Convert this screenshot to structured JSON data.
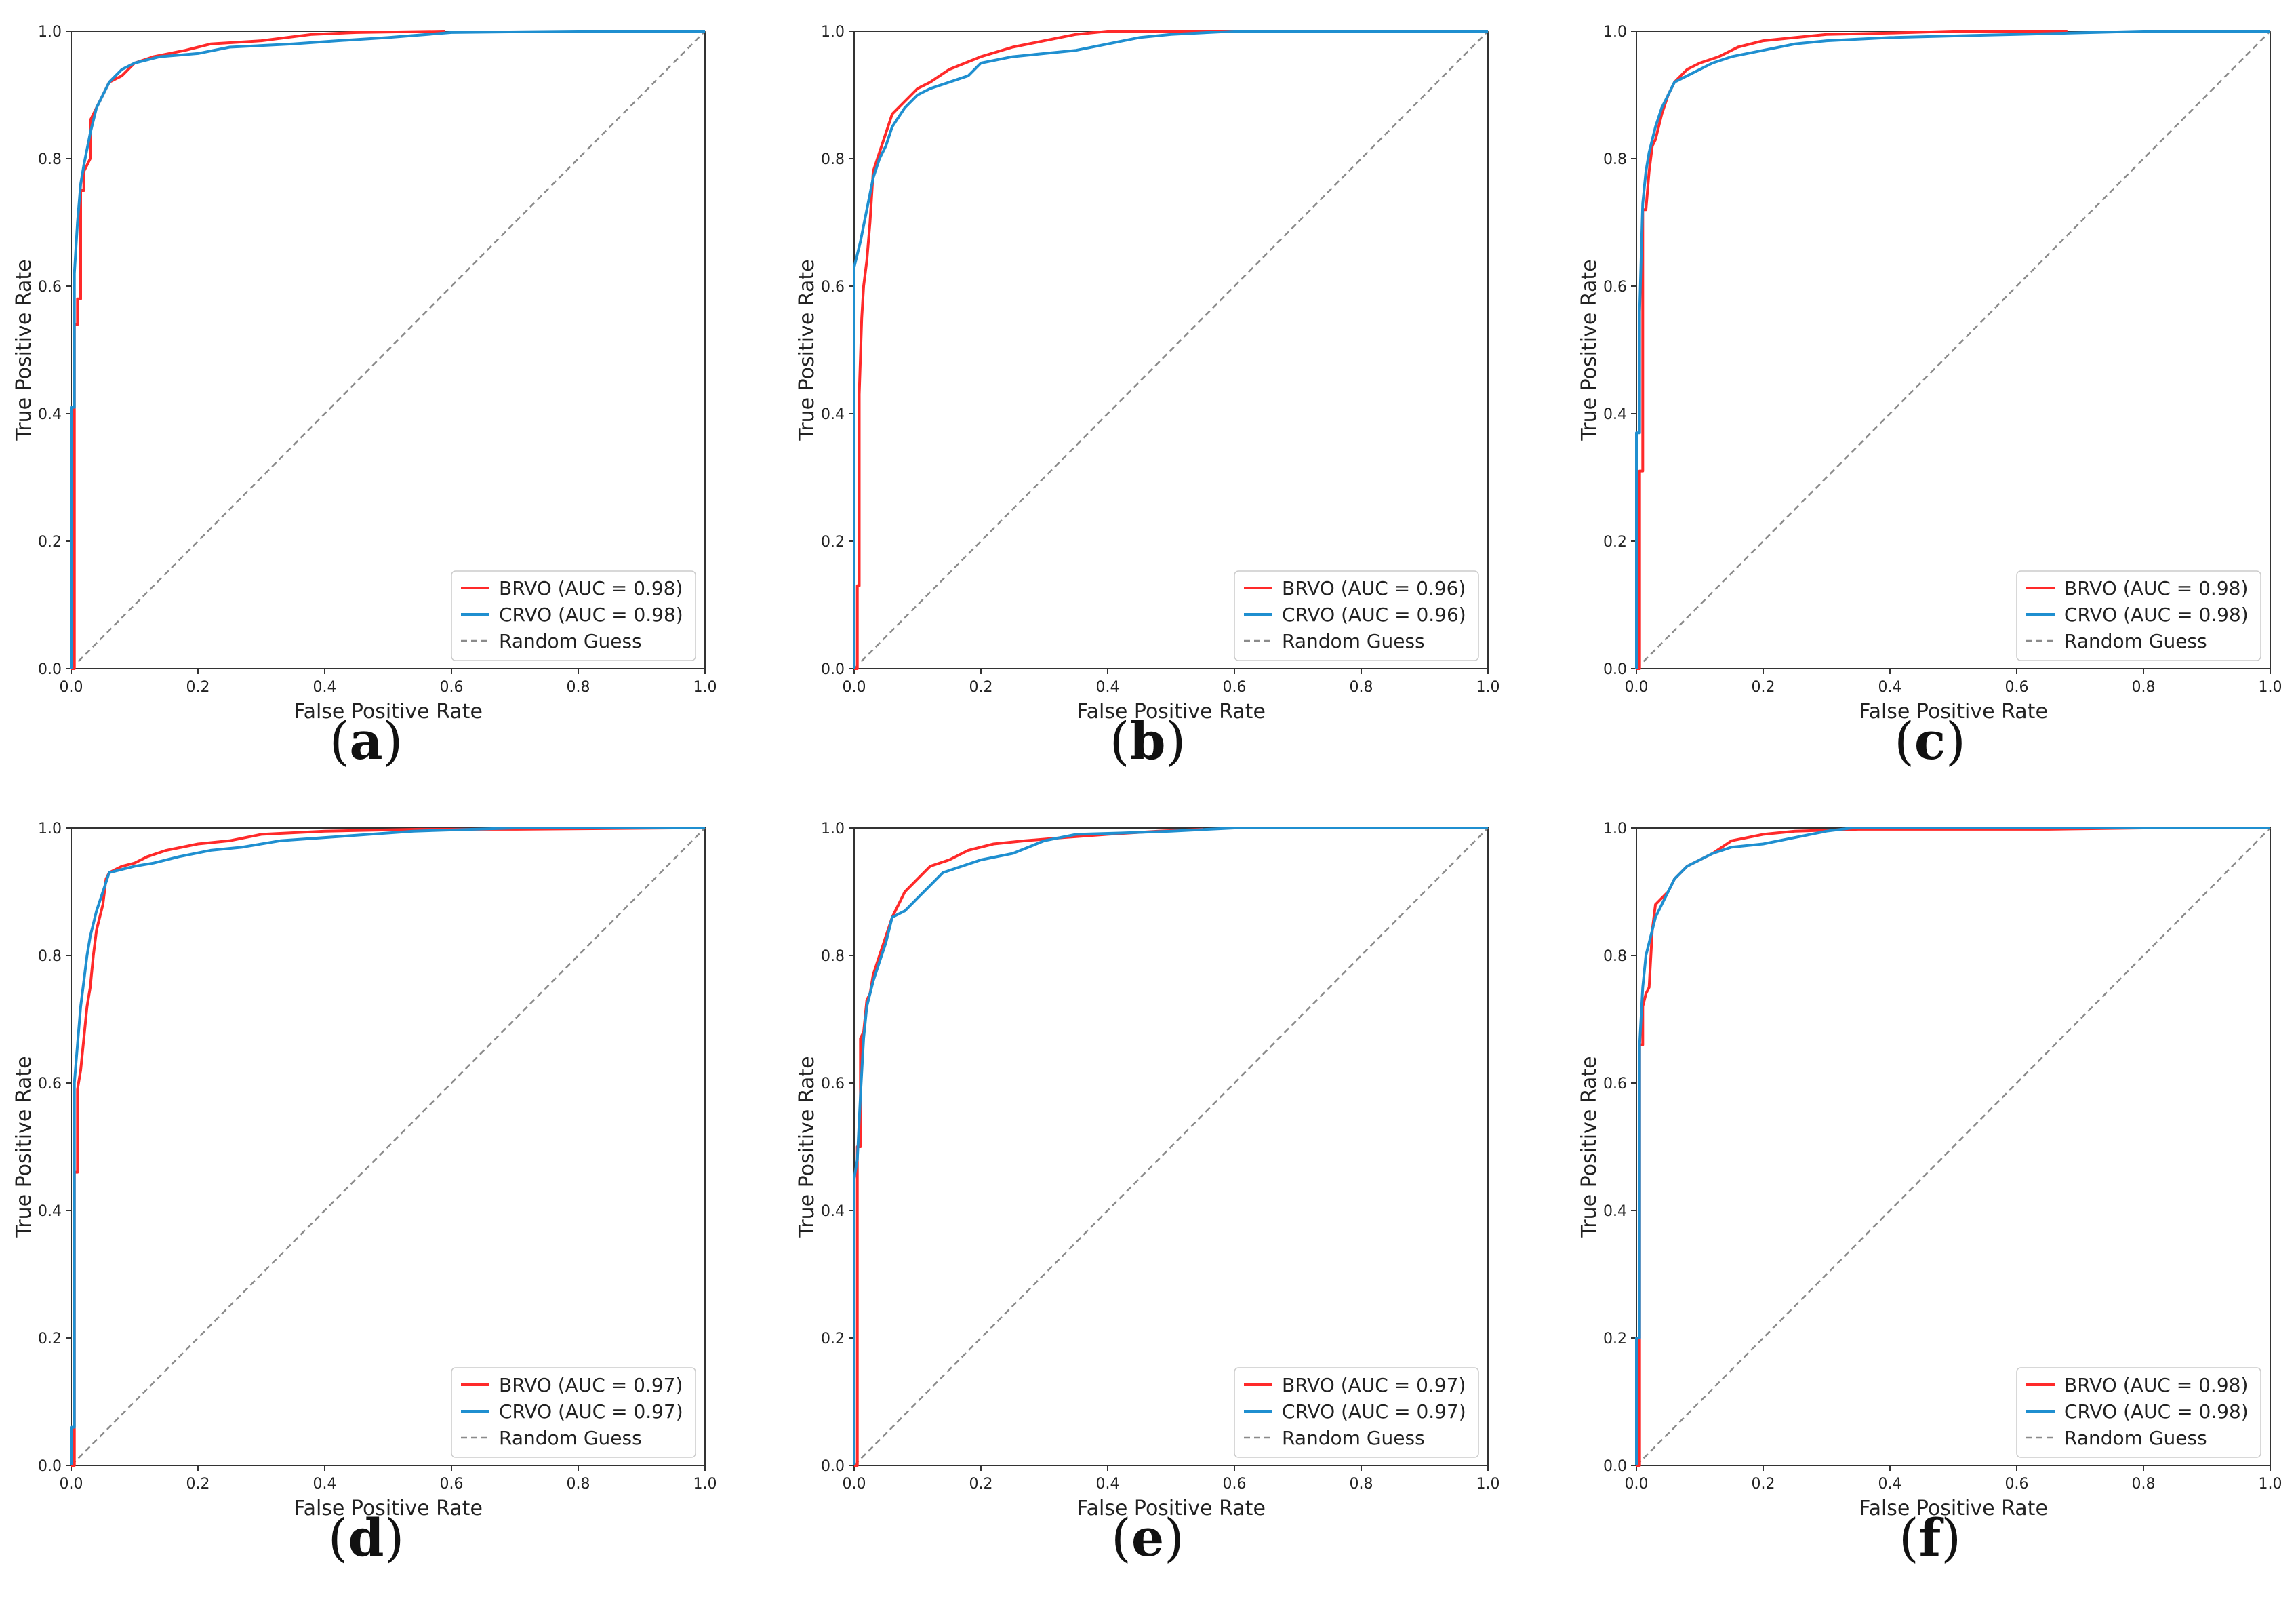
{
  "figure": {
    "colors": {
      "brvo": "#ff2a2a",
      "crvo": "#1f8fd0",
      "random": "#8a8a8a",
      "axis": "#333333"
    },
    "xlabel": "False Positive Rate",
    "ylabel": "True Positive Rate",
    "ticks": [
      "0.0",
      "0.2",
      "0.4",
      "0.6",
      "0.8",
      "1.0"
    ],
    "legend_random": "Random Guess"
  },
  "chart_data": [
    {
      "type": "line",
      "panel": "a",
      "caption_letter": "a",
      "xlim": [
        0,
        1
      ],
      "ylim": [
        0,
        1
      ],
      "legend": "lower-right",
      "series": [
        {
          "name": "BRVO",
          "label": "BRVO (AUC = 0.98)",
          "x": [
            0,
            0.005,
            0.005,
            0.01,
            0.01,
            0.015,
            0.015,
            0.02,
            0.02,
            0.03,
            0.03,
            0.04,
            0.05,
            0.06,
            0.08,
            0.1,
            0.13,
            0.18,
            0.22,
            0.3,
            0.38,
            0.45,
            0.59
          ],
          "y": [
            0,
            0,
            0.54,
            0.54,
            0.58,
            0.58,
            0.75,
            0.75,
            0.78,
            0.8,
            0.86,
            0.88,
            0.9,
            0.92,
            0.93,
            0.95,
            0.96,
            0.97,
            0.98,
            0.985,
            0.995,
            0.998,
            1.0
          ]
        },
        {
          "name": "CRVO",
          "label": "CRVO (AUC = 0.98)",
          "x": [
            0,
            0,
            0.005,
            0.005,
            0.01,
            0.015,
            0.02,
            0.03,
            0.04,
            0.05,
            0.06,
            0.08,
            0.1,
            0.14,
            0.2,
            0.25,
            0.35,
            0.42,
            0.5,
            0.6,
            0.8,
            1.0
          ],
          "y": [
            0,
            0.41,
            0.41,
            0.62,
            0.7,
            0.76,
            0.79,
            0.84,
            0.88,
            0.9,
            0.92,
            0.94,
            0.95,
            0.96,
            0.965,
            0.975,
            0.98,
            0.985,
            0.99,
            0.998,
            1.0,
            1.0
          ]
        },
        {
          "name": "Random Guess",
          "label": "Random Guess",
          "x": [
            0,
            1
          ],
          "y": [
            0,
            1
          ]
        }
      ]
    },
    {
      "type": "line",
      "panel": "b",
      "caption_letter": "b",
      "xlim": [
        0,
        1
      ],
      "ylim": [
        0,
        1
      ],
      "legend": "lower-right",
      "series": [
        {
          "name": "BRVO",
          "label": "BRVO (AUC = 0.96)",
          "x": [
            0,
            0.005,
            0.005,
            0.008,
            0.008,
            0.012,
            0.015,
            0.02,
            0.025,
            0.03,
            0.04,
            0.05,
            0.06,
            0.08,
            0.1,
            0.12,
            0.15,
            0.2,
            0.25,
            0.3,
            0.35,
            0.4,
            0.6,
            0.86
          ],
          "y": [
            0,
            0,
            0.13,
            0.13,
            0.43,
            0.55,
            0.6,
            0.64,
            0.7,
            0.78,
            0.81,
            0.84,
            0.87,
            0.89,
            0.91,
            0.92,
            0.94,
            0.96,
            0.975,
            0.985,
            0.995,
            1.0,
            1.0,
            1.0
          ]
        },
        {
          "name": "CRVO",
          "label": "CRVO (AUC = 0.96)",
          "x": [
            0,
            0,
            0.005,
            0.01,
            0.02,
            0.03,
            0.04,
            0.05,
            0.06,
            0.08,
            0.1,
            0.12,
            0.15,
            0.18,
            0.2,
            0.25,
            0.3,
            0.35,
            0.4,
            0.45,
            0.5,
            0.6,
            0.86,
            1.0
          ],
          "y": [
            0,
            0.63,
            0.65,
            0.67,
            0.72,
            0.77,
            0.8,
            0.82,
            0.85,
            0.88,
            0.9,
            0.91,
            0.92,
            0.93,
            0.95,
            0.96,
            0.965,
            0.97,
            0.98,
            0.99,
            0.995,
            1.0,
            1.0,
            1.0
          ]
        },
        {
          "name": "Random Guess",
          "label": "Random Guess",
          "x": [
            0,
            1
          ],
          "y": [
            0,
            1
          ]
        }
      ]
    },
    {
      "type": "line",
      "panel": "c",
      "caption_letter": "c",
      "xlim": [
        0,
        1
      ],
      "ylim": [
        0,
        1
      ],
      "legend": "lower-right",
      "series": [
        {
          "name": "BRVO",
          "label": "BRVO (AUC = 0.98)",
          "x": [
            0,
            0.005,
            0.005,
            0.01,
            0.01,
            0.015,
            0.02,
            0.025,
            0.03,
            0.04,
            0.05,
            0.06,
            0.08,
            0.1,
            0.13,
            0.16,
            0.2,
            0.25,
            0.3,
            0.4,
            0.5,
            0.68
          ],
          "y": [
            0,
            0,
            0.31,
            0.31,
            0.72,
            0.72,
            0.78,
            0.82,
            0.83,
            0.87,
            0.9,
            0.92,
            0.94,
            0.95,
            0.96,
            0.975,
            0.985,
            0.99,
            0.995,
            0.997,
            1.0,
            1.0
          ]
        },
        {
          "name": "CRVO",
          "label": "CRVO (AUC = 0.98)",
          "x": [
            0,
            0,
            0.005,
            0.005,
            0.01,
            0.015,
            0.02,
            0.03,
            0.04,
            0.05,
            0.06,
            0.08,
            0.1,
            0.12,
            0.15,
            0.2,
            0.25,
            0.3,
            0.4,
            0.6,
            0.8,
            1.0
          ],
          "y": [
            0,
            0.37,
            0.37,
            0.56,
            0.73,
            0.78,
            0.81,
            0.85,
            0.88,
            0.9,
            0.92,
            0.93,
            0.94,
            0.95,
            0.96,
            0.97,
            0.98,
            0.985,
            0.99,
            0.995,
            1.0,
            1.0
          ]
        },
        {
          "name": "Random Guess",
          "label": "Random Guess",
          "x": [
            0,
            1
          ],
          "y": [
            0,
            1
          ]
        }
      ]
    },
    {
      "type": "line",
      "panel": "d",
      "caption_letter": "d",
      "xlim": [
        0,
        1
      ],
      "ylim": [
        0,
        1
      ],
      "legend": "lower-right",
      "series": [
        {
          "name": "BRVO",
          "label": "BRVO (AUC = 0.97)",
          "x": [
            0,
            0.005,
            0.005,
            0.01,
            0.01,
            0.015,
            0.02,
            0.025,
            0.03,
            0.035,
            0.04,
            0.05,
            0.055,
            0.06,
            0.08,
            0.1,
            0.12,
            0.15,
            0.2,
            0.25,
            0.3,
            0.4,
            0.55,
            0.7,
            0.95
          ],
          "y": [
            0,
            0,
            0.46,
            0.46,
            0.59,
            0.62,
            0.67,
            0.72,
            0.75,
            0.8,
            0.84,
            0.88,
            0.92,
            0.93,
            0.94,
            0.945,
            0.955,
            0.965,
            0.975,
            0.98,
            0.99,
            0.995,
            0.998,
            0.998,
            1.0
          ]
        },
        {
          "name": "CRVO",
          "label": "CRVO (AUC = 0.97)",
          "x": [
            0,
            0,
            0.005,
            0.005,
            0.01,
            0.015,
            0.02,
            0.025,
            0.03,
            0.04,
            0.05,
            0.06,
            0.08,
            0.1,
            0.13,
            0.17,
            0.22,
            0.27,
            0.33,
            0.4,
            0.54,
            0.7,
            0.95,
            1.0
          ],
          "y": [
            0,
            0.06,
            0.06,
            0.6,
            0.66,
            0.72,
            0.76,
            0.8,
            0.83,
            0.87,
            0.9,
            0.93,
            0.935,
            0.94,
            0.945,
            0.955,
            0.965,
            0.97,
            0.98,
            0.985,
            0.995,
            1.0,
            1.0,
            1.0
          ]
        },
        {
          "name": "Random Guess",
          "label": "Random Guess",
          "x": [
            0,
            1
          ],
          "y": [
            0,
            1
          ]
        }
      ]
    },
    {
      "type": "line",
      "panel": "e",
      "caption_letter": "e",
      "xlim": [
        0,
        1
      ],
      "ylim": [
        0,
        1
      ],
      "legend": "lower-right",
      "series": [
        {
          "name": "BRVO",
          "label": "BRVO (AUC = 0.97)",
          "x": [
            0,
            0.005,
            0.005,
            0.01,
            0.01,
            0.015,
            0.02,
            0.025,
            0.03,
            0.04,
            0.05,
            0.06,
            0.07,
            0.08,
            0.1,
            0.12,
            0.15,
            0.18,
            0.22,
            0.27,
            0.33,
            0.4,
            0.48,
            0.55
          ],
          "y": [
            0,
            0,
            0.5,
            0.5,
            0.67,
            0.68,
            0.73,
            0.74,
            0.77,
            0.8,
            0.83,
            0.86,
            0.88,
            0.9,
            0.92,
            0.94,
            0.95,
            0.965,
            0.975,
            0.98,
            0.985,
            0.99,
            0.995,
            0.998
          ]
        },
        {
          "name": "CRVO",
          "label": "CRVO (AUC = 0.97)",
          "x": [
            0,
            0,
            0.005,
            0.01,
            0.015,
            0.02,
            0.03,
            0.04,
            0.05,
            0.06,
            0.08,
            0.1,
            0.12,
            0.14,
            0.17,
            0.2,
            0.25,
            0.3,
            0.35,
            0.42,
            0.5,
            0.6,
            0.8,
            1.0
          ],
          "y": [
            0,
            0.45,
            0.48,
            0.58,
            0.67,
            0.72,
            0.76,
            0.79,
            0.82,
            0.86,
            0.87,
            0.89,
            0.91,
            0.93,
            0.94,
            0.95,
            0.96,
            0.98,
            0.99,
            0.992,
            0.995,
            1.0,
            1.0,
            1.0
          ]
        },
        {
          "name": "Random Guess",
          "label": "Random Guess",
          "x": [
            0,
            1
          ],
          "y": [
            0,
            1
          ]
        }
      ]
    },
    {
      "type": "line",
      "panel": "f",
      "caption_letter": "f",
      "xlim": [
        0,
        1
      ],
      "ylim": [
        0,
        1
      ],
      "legend": "lower-right",
      "series": [
        {
          "name": "BRVO",
          "label": "BRVO (AUC = 0.98)",
          "x": [
            0,
            0.005,
            0.005,
            0.01,
            0.01,
            0.015,
            0.02,
            0.025,
            0.03,
            0.04,
            0.05,
            0.06,
            0.07,
            0.08,
            0.1,
            0.12,
            0.15,
            0.2,
            0.25,
            0.35,
            0.5,
            0.65,
            0.8
          ],
          "y": [
            0,
            0,
            0.66,
            0.66,
            0.72,
            0.74,
            0.75,
            0.84,
            0.88,
            0.89,
            0.9,
            0.92,
            0.93,
            0.94,
            0.95,
            0.96,
            0.98,
            0.99,
            0.995,
            0.998,
            0.998,
            0.998,
            1.0
          ]
        },
        {
          "name": "CRVO",
          "label": "CRVO (AUC = 0.98)",
          "x": [
            0,
            0,
            0.005,
            0.005,
            0.01,
            0.015,
            0.02,
            0.03,
            0.04,
            0.05,
            0.06,
            0.08,
            0.1,
            0.12,
            0.15,
            0.2,
            0.25,
            0.3,
            0.34,
            0.5,
            0.7,
            1.0
          ],
          "y": [
            0,
            0.2,
            0.2,
            0.66,
            0.75,
            0.8,
            0.82,
            0.86,
            0.88,
            0.9,
            0.92,
            0.94,
            0.95,
            0.96,
            0.97,
            0.975,
            0.985,
            0.995,
            1.0,
            1.0,
            1.0,
            1.0
          ]
        },
        {
          "name": "Random Guess",
          "label": "Random Guess",
          "x": [
            0,
            1
          ],
          "y": [
            0,
            1
          ]
        }
      ]
    }
  ]
}
